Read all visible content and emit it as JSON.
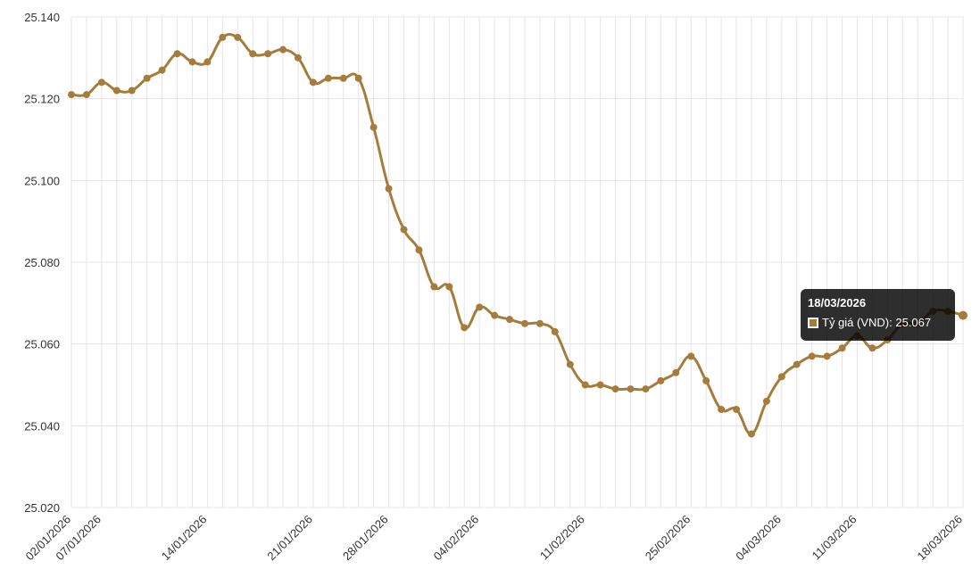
{
  "chart_data": {
    "type": "line",
    "title": "",
    "xlabel": "",
    "ylabel": "",
    "ylim": [
      25020,
      25140
    ],
    "y_ticks": [
      "25.020",
      "25.040",
      "25.060",
      "25.080",
      "25.100",
      "25.120",
      "25.140"
    ],
    "y_tick_values": [
      25020,
      25040,
      25060,
      25080,
      25100,
      25120,
      25140
    ],
    "x_tick_labels": [
      "02/01/2026",
      "07/01/2026",
      "14/01/2026",
      "21/01/2026",
      "28/01/2026",
      "04/02/2026",
      "11/02/2026",
      "25/02/2026",
      "04/03/2026",
      "11/03/2026",
      "18/03/2026"
    ],
    "x_tick_indices": [
      0,
      2,
      9,
      16,
      21,
      27,
      34,
      41,
      47,
      52,
      59
    ],
    "grid": true,
    "legend": "none",
    "color": "#a67c3d",
    "series": [
      {
        "values": [
          25121,
          25121,
          25124,
          25122,
          25122,
          25125,
          25127,
          25131,
          25129,
          25129,
          25135,
          25135,
          25131,
          25131,
          25132,
          25130,
          25124,
          25125,
          25125,
          25125,
          25113,
          25098,
          25088,
          25083,
          25074,
          25074,
          25064,
          25069,
          25067,
          25066,
          25065,
          25065,
          25063,
          25055,
          25050,
          25050,
          25049,
          25049,
          25049,
          25051,
          25053,
          25057,
          25051,
          25044,
          25044,
          25038,
          25046,
          25052,
          25055,
          25057,
          25057,
          25059,
          25062,
          25059,
          25061,
          25065,
          25065,
          25068,
          25068,
          25067
        ]
      }
    ]
  },
  "tooltip": {
    "title": "18/03/2026",
    "label": "Tỷ giá (VND): 25.067"
  }
}
